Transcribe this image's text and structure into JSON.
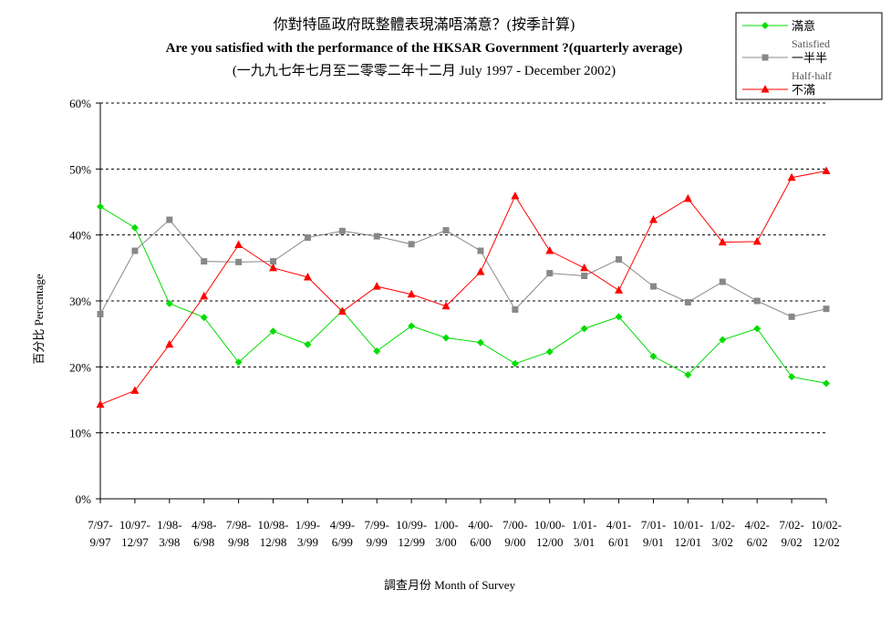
{
  "chart_data": {
    "type": "line",
    "title": "你對特區政府既整體表現滿唔滿意？(按季計算)",
    "subtitle": "Are you satisfied with the performance of the HKSAR Government ?(quarterly average)",
    "subtitle2": "(一九九七年七月至二零零二年十二月 July 1997 - December 2002)",
    "xlabel": "調查月份 Month of Survey",
    "ylabel": "百分比 Percentage",
    "ylim": [
      0,
      60
    ],
    "yticks": [
      "0%",
      "10%",
      "20%",
      "30%",
      "40%",
      "50%",
      "60%"
    ],
    "grid": true,
    "legend_position": "top-right",
    "categories": [
      [
        "7/97-",
        "9/97"
      ],
      [
        "10/97-",
        "12/97"
      ],
      [
        "1/98-",
        "3/98"
      ],
      [
        "4/98-",
        "6/98"
      ],
      [
        "7/98-",
        "9/98"
      ],
      [
        "10/98-",
        "12/98"
      ],
      [
        "1/99-",
        "3/99"
      ],
      [
        "4/99-",
        "6/99"
      ],
      [
        "7/99-",
        "9/99"
      ],
      [
        "10/99-",
        "12/99"
      ],
      [
        "1/00-",
        "3/00"
      ],
      [
        "4/00-",
        "6/00"
      ],
      [
        "7/00-",
        "9/00"
      ],
      [
        "10/00-",
        "12/00"
      ],
      [
        "1/01-",
        "3/01"
      ],
      [
        "4/01-",
        "6/01"
      ],
      [
        "7/01-",
        "9/01"
      ],
      [
        "10/01-",
        "12/01"
      ],
      [
        "1/02-",
        "3/02"
      ],
      [
        "4/02-",
        "6/02"
      ],
      [
        "7/02-",
        "9/02"
      ],
      [
        "10/02-",
        "12/02"
      ]
    ],
    "series": [
      {
        "name": "滿意",
        "name_en": "Satisfied",
        "color": "#00dd00",
        "marker": "diamond",
        "values": [
          44.3,
          41.1,
          29.6,
          27.5,
          20.7,
          25.4,
          23.4,
          28.5,
          22.4,
          26.2,
          24.4,
          23.7,
          20.5,
          22.3,
          25.8,
          27.6,
          21.6,
          18.8,
          24.1,
          25.8,
          18.5,
          17.5
        ]
      },
      {
        "name": "一半半",
        "name_en": "Half-half",
        "color": "#888888",
        "marker": "square",
        "values": [
          28.0,
          37.6,
          42.3,
          36.0,
          35.9,
          36.0,
          39.6,
          40.6,
          39.8,
          38.6,
          40.7,
          37.6,
          28.7,
          34.2,
          33.8,
          36.3,
          32.2,
          29.8,
          32.9,
          30.0,
          27.6,
          28.8
        ]
      },
      {
        "name": "不滿",
        "name_en": "",
        "color": "#ff0000",
        "marker": "triangle",
        "values": [
          14.3,
          16.4,
          23.4,
          30.7,
          38.5,
          35.0,
          33.6,
          28.4,
          32.2,
          31.0,
          29.2,
          34.4,
          45.9,
          37.6,
          35.0,
          31.6,
          42.3,
          45.5,
          38.9,
          39.0,
          48.7,
          49.7
        ]
      }
    ]
  }
}
